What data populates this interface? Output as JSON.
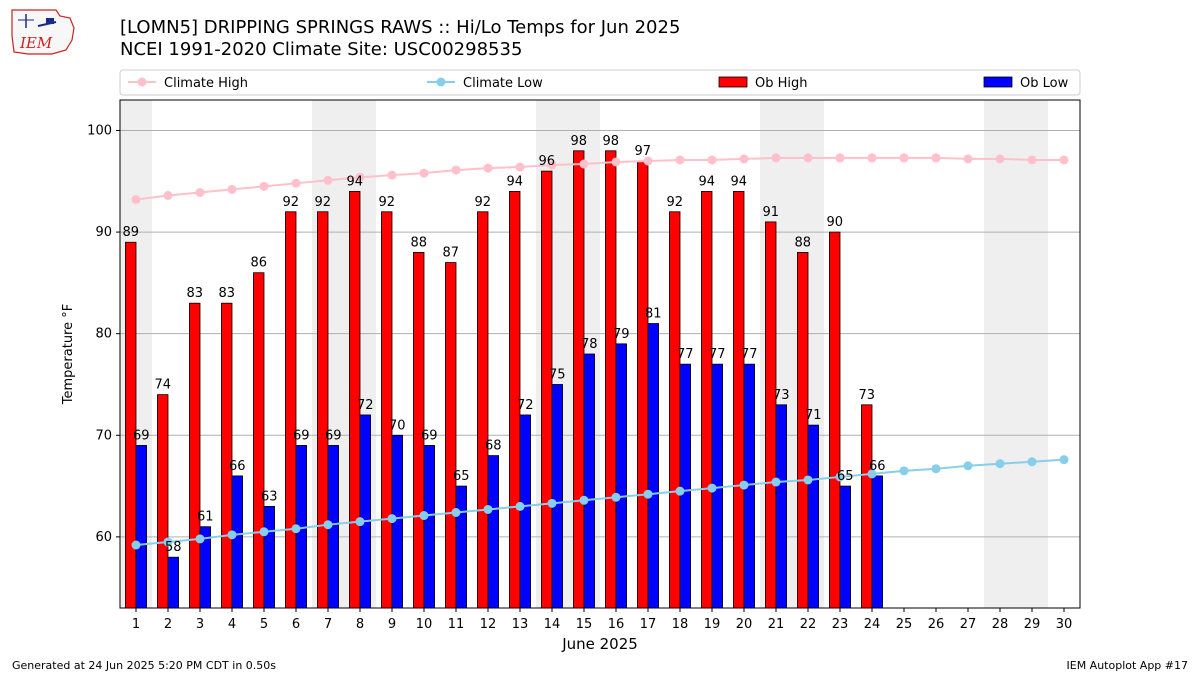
{
  "header": {
    "title_line1": "[LOMN5] DRIPPING SPRINGS RAWS :: Hi/Lo Temps for Jun 2025",
    "title_line2": "NCEI 1991-2020 Climate Site: USC00298535"
  },
  "logo": {
    "text": "IEM"
  },
  "footer": {
    "left": "Generated at 24 Jun 2025 5:20 PM CDT in 0.50s",
    "right": "IEM Autoplot App #17"
  },
  "chart_data": {
    "type": "bar",
    "xlabel": "June 2025",
    "ylabel": "Temperature °F",
    "ylim": [
      53,
      103
    ],
    "yticks": [
      60,
      70,
      80,
      90,
      100
    ],
    "grid": true,
    "legend_position": "top",
    "days": [
      1,
      2,
      3,
      4,
      5,
      6,
      7,
      8,
      9,
      10,
      11,
      12,
      13,
      14,
      15,
      16,
      17,
      18,
      19,
      20,
      21,
      22,
      23,
      24,
      25,
      26,
      27,
      28,
      29,
      30
    ],
    "weekend_days": [
      1,
      7,
      8,
      14,
      15,
      21,
      22,
      28,
      29
    ],
    "series": [
      {
        "name": "Climate High",
        "kind": "line",
        "color": "#ffc0cb",
        "values": [
          93.2,
          93.6,
          93.9,
          94.2,
          94.5,
          94.8,
          95.1,
          95.4,
          95.6,
          95.8,
          96.1,
          96.3,
          96.4,
          96.6,
          96.7,
          96.9,
          97.0,
          97.1,
          97.1,
          97.2,
          97.3,
          97.3,
          97.3,
          97.3,
          97.3,
          97.3,
          97.2,
          97.2,
          97.1,
          97.1
        ]
      },
      {
        "name": "Climate Low",
        "kind": "line",
        "color": "#87ceeb",
        "values": [
          59.2,
          59.5,
          59.8,
          60.2,
          60.5,
          60.8,
          61.2,
          61.5,
          61.8,
          62.1,
          62.4,
          62.7,
          63.0,
          63.3,
          63.6,
          63.9,
          64.2,
          64.5,
          64.8,
          65.1,
          65.4,
          65.6,
          65.9,
          66.2,
          66.5,
          66.7,
          67.0,
          67.2,
          67.4,
          67.6
        ]
      },
      {
        "name": "Ob High",
        "kind": "bar",
        "color": "#ff0000",
        "values": [
          89,
          74,
          83,
          83,
          86,
          92,
          92,
          94,
          92,
          88,
          87,
          92,
          94,
          96,
          98,
          98,
          97,
          92,
          94,
          94,
          91,
          88,
          90,
          73
        ]
      },
      {
        "name": "Ob Low",
        "kind": "bar",
        "color": "#0000ff",
        "values": [
          69,
          58,
          61,
          66,
          63,
          69,
          69,
          72,
          70,
          69,
          65,
          68,
          72,
          75,
          78,
          79,
          81,
          77,
          77,
          77,
          73,
          71,
          65,
          66
        ]
      }
    ]
  }
}
